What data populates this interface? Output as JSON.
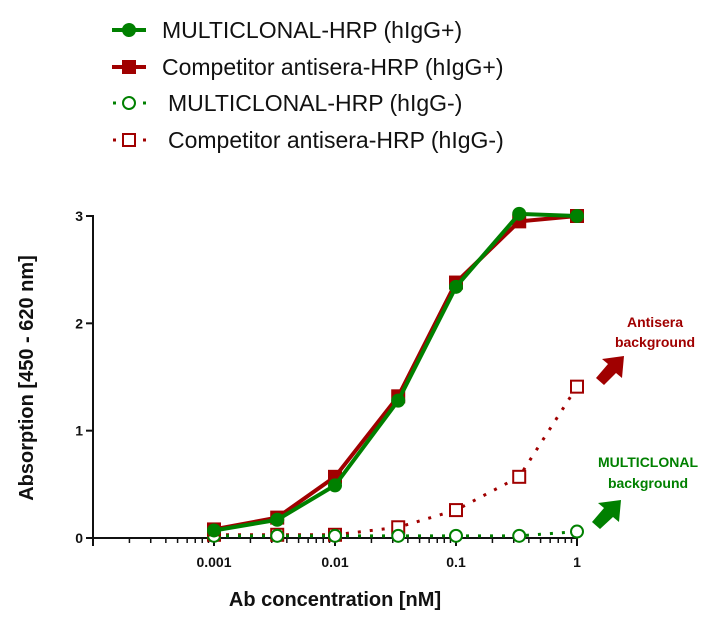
{
  "chart_data": {
    "type": "line",
    "title": "",
    "xlabel": "Ab concentration [nM]",
    "ylabel": "Absorption [450 - 620 nm]",
    "xscale": "log",
    "xlim": [
      0.0001,
      1
    ],
    "ylim": [
      0,
      3
    ],
    "x_ticks": [
      {
        "value": 0.001,
        "label": "0.001"
      },
      {
        "value": 0.01,
        "label": "0.01"
      },
      {
        "value": 0.1,
        "label": "0.1"
      },
      {
        "value": 1,
        "label": "1"
      }
    ],
    "y_ticks": [
      {
        "value": 0,
        "label": "0"
      },
      {
        "value": 1,
        "label": "1"
      },
      {
        "value": 2,
        "label": "2"
      },
      {
        "value": 3,
        "label": "3"
      }
    ],
    "grid": false,
    "legend_position": "top",
    "x": [
      0.001,
      0.00333,
      0.01,
      0.0333,
      0.1,
      0.333,
      1
    ],
    "series": [
      {
        "name": "MULTICLONAL-HRP (hIgG+)",
        "color": "#008000",
        "marker": "circle-filled",
        "line": "solid",
        "values": [
          0.07,
          0.17,
          0.49,
          1.28,
          2.34,
          3.02,
          3.0
        ]
      },
      {
        "name": "Competitor antisera-HRP (hIgG+)",
        "color": "#a00000",
        "marker": "square-filled",
        "line": "solid",
        "values": [
          0.08,
          0.19,
          0.57,
          1.32,
          2.38,
          2.95,
          3.0
        ]
      },
      {
        "name": "MULTICLONAL-HRP (hIgG-)",
        "color": "#008000",
        "marker": "circle-open",
        "line": "dotted",
        "values": [
          0.02,
          0.02,
          0.02,
          0.02,
          0.02,
          0.02,
          0.06
        ]
      },
      {
        "name": "Competitor antisera-HRP (hIgG-)",
        "color": "#a00000",
        "marker": "square-open",
        "line": "dotted",
        "values": [
          0.03,
          0.03,
          0.03,
          0.1,
          0.26,
          0.57,
          1.41
        ]
      }
    ],
    "annotations": [
      {
        "text_line1": "Antisera",
        "text_line2": "background",
        "color": "#a00000",
        "points_to_series": "Competitor antisera-HRP (hIgG-)",
        "points_to_x": 1
      },
      {
        "text_line1": "MULTICLONAL",
        "text_line2": "background",
        "color": "#008000",
        "points_to_series": "MULTICLONAL-HRP (hIgG-)",
        "points_to_x": 1
      }
    ]
  }
}
